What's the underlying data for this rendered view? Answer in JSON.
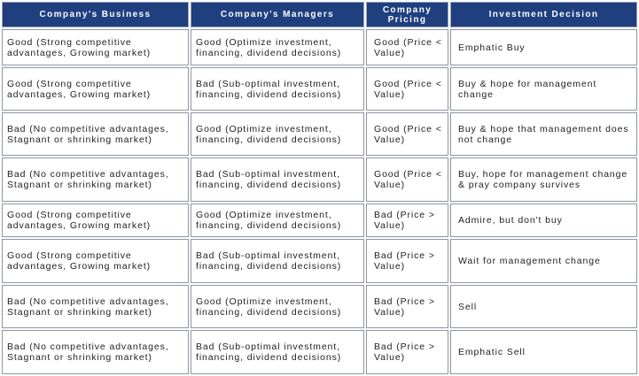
{
  "table": {
    "headers": [
      "Company's Business",
      "Company's Managers",
      "Company Pricing",
      "Investment Decision"
    ],
    "rows": [
      [
        "Good (Strong competitive advantages, Growing market)",
        "Good (Optimize investment, financing, dividend decisions)",
        "Good (Price < Value)",
        "Emphatic Buy"
      ],
      [
        "Good (Strong competitive advantages, Growing market)",
        "Bad (Sub-optimal investment, financing, dividend decisions)",
        "Good (Price < Value)",
        "Buy & hope for management change"
      ],
      [
        "Bad (No competitive advantages, Stagnant or shrinking market)",
        "Good (Optimize investment, financing, dividend decisions)",
        "Good (Price < Value)",
        "Buy & hope that management does not change"
      ],
      [
        "Bad (No competitive advantages, Stagnant or shrinking market)",
        "Bad (Sub-optimal investment, financing, dividend decisions)",
        "Good (Price < Value)",
        "Buy, hope for management change & pray company survives"
      ],
      [
        "Good (Strong competitive advantages, Growing market)",
        "Good (Optimize investment, financing, dividend decisions)",
        "Bad (Price > Value)",
        "Admire, but don't buy"
      ],
      [
        "Good (Strong competitive advantages, Growing market)",
        "Bad (Sub-optimal investment, financing, dividend decisions)",
        "Bad (Price > Value)",
        "Wait for management change"
      ],
      [
        "Bad (No competitive advantages, Stagnant or shrinking market)",
        "Good (Optimize investment, financing, dividend decisions)",
        "Bad (Price > Value)",
        "Sell"
      ],
      [
        "Bad (No competitive advantages, Stagnant or shrinking market)",
        "Bad (Sub-optimal investment, financing, dividend decisions)",
        "Bad (Price > Value)",
        "Emphatic Sell"
      ]
    ]
  },
  "colors": {
    "header_background": "#1f3f7f",
    "header_text": "#ffffff",
    "cell_border": "#8e96a3"
  }
}
